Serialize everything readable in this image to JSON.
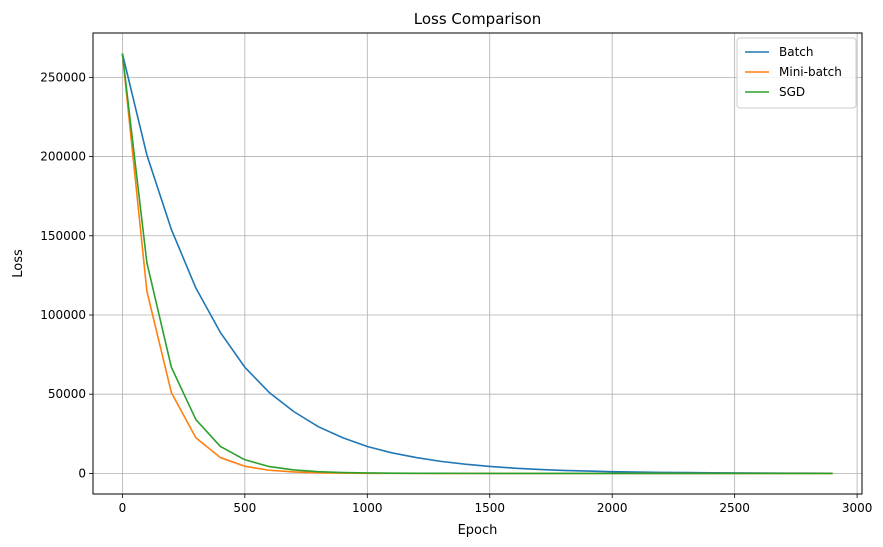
{
  "chart_data": {
    "type": "line",
    "title": "Loss Comparison",
    "xlabel": "Epoch",
    "ylabel": "Loss",
    "xlim": [
      -120,
      3020
    ],
    "ylim": [
      -13000,
      278000
    ],
    "x_ticks": [
      0,
      500,
      1000,
      1500,
      2000,
      2500,
      3000
    ],
    "y_ticks": [
      0,
      50000,
      100000,
      150000,
      200000,
      250000
    ],
    "grid": true,
    "legend_position": "top-right",
    "x": [
      0,
      100,
      200,
      300,
      400,
      500,
      600,
      700,
      800,
      900,
      1000,
      1100,
      1200,
      1300,
      1400,
      1500,
      1600,
      1700,
      1800,
      1900,
      2000,
      2100,
      2200,
      2300,
      2400,
      2500,
      2600,
      2700,
      2800,
      2900
    ],
    "series": [
      {
        "name": "Batch",
        "color": "#1f77b4",
        "values": [
          265000,
          201000,
          154000,
          117000,
          89000,
          67000,
          51000,
          39000,
          29500,
          22500,
          17000,
          13000,
          10000,
          7600,
          5800,
          4400,
          3300,
          2500,
          1900,
          1450,
          1100,
          850,
          650,
          500,
          380,
          290,
          220,
          170,
          130,
          100
        ]
      },
      {
        "name": "Mini-batch",
        "color": "#ff7f0e",
        "values": [
          265000,
          115000,
          51000,
          22500,
          10000,
          4500,
          2000,
          900,
          400,
          180,
          80,
          40,
          20,
          10,
          5,
          2,
          1,
          0,
          0,
          0,
          0,
          0,
          0,
          0,
          0,
          0,
          0,
          0,
          0,
          0
        ]
      },
      {
        "name": "SGD",
        "color": "#2ca02c",
        "values": [
          265000,
          133000,
          67000,
          34000,
          17000,
          8600,
          4300,
          2200,
          1100,
          550,
          280,
          140,
          70,
          35,
          18,
          9,
          5,
          2,
          1,
          0,
          0,
          0,
          0,
          0,
          0,
          0,
          0,
          0,
          0,
          0
        ]
      }
    ]
  }
}
